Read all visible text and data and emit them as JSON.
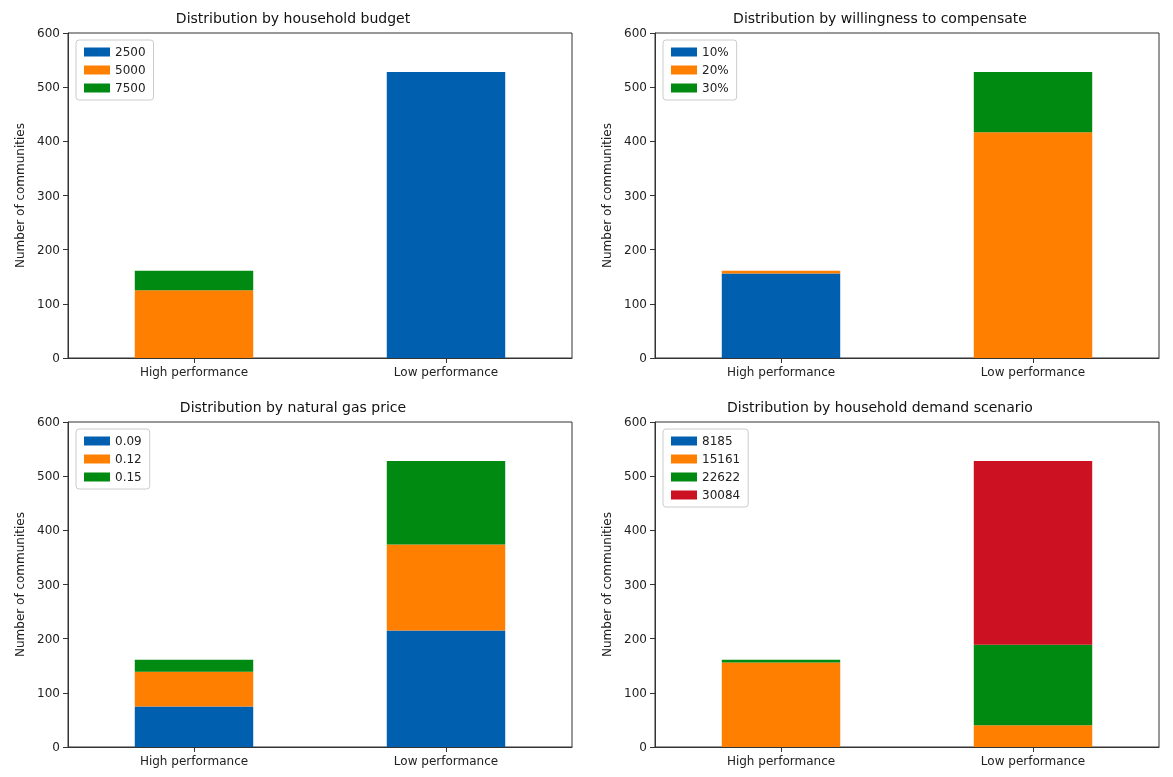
{
  "chart_data": [
    {
      "type": "bar",
      "title": "Distribution by household budget",
      "ylabel": "Number of communities",
      "categories": [
        "High performance",
        "Low performance"
      ],
      "stacked": true,
      "ylim": [
        0,
        600
      ],
      "yticks": [
        0,
        100,
        200,
        300,
        400,
        500,
        600
      ],
      "grid": false,
      "legend": "top left",
      "series": [
        {
          "name": "2500",
          "color": "#005faf",
          "values": [
            0,
            528
          ]
        },
        {
          "name": "5000",
          "color": "#ff7f00",
          "values": [
            125,
            0
          ]
        },
        {
          "name": "7500",
          "color": "#008a11",
          "values": [
            36,
            0
          ]
        }
      ]
    },
    {
      "type": "bar",
      "title": "Distribution by willingness to compensate",
      "ylabel": "Number of communities",
      "categories": [
        "High performance",
        "Low performance"
      ],
      "stacked": true,
      "ylim": [
        0,
        600
      ],
      "yticks": [
        0,
        100,
        200,
        300,
        400,
        500,
        600
      ],
      "grid": false,
      "legend": "top left",
      "series": [
        {
          "name": "10%",
          "color": "#005faf",
          "values": [
            156,
            0
          ]
        },
        {
          "name": "20%",
          "color": "#ff7f00",
          "values": [
            5,
            417
          ]
        },
        {
          "name": "30%",
          "color": "#008a11",
          "values": [
            0,
            111
          ]
        }
      ]
    },
    {
      "type": "bar",
      "title": "Distribution by natural gas price",
      "ylabel": "Number of communities",
      "categories": [
        "High performance",
        "Low performance"
      ],
      "stacked": true,
      "ylim": [
        0,
        600
      ],
      "yticks": [
        0,
        100,
        200,
        300,
        400,
        500,
        600
      ],
      "grid": false,
      "legend": "top left",
      "series": [
        {
          "name": "0.09",
          "color": "#005faf",
          "values": [
            75,
            215
          ]
        },
        {
          "name": "0.12",
          "color": "#ff7f00",
          "values": [
            64,
            159
          ]
        },
        {
          "name": "0.15",
          "color": "#008a11",
          "values": [
            22,
            154
          ]
        }
      ]
    },
    {
      "type": "bar",
      "title": "Distribution by household demand scenario",
      "ylabel": "Number of communities",
      "categories": [
        "High performance",
        "Low performance"
      ],
      "stacked": true,
      "ylim": [
        0,
        600
      ],
      "yticks": [
        0,
        100,
        200,
        300,
        400,
        500,
        600
      ],
      "grid": false,
      "legend": "top left",
      "series": [
        {
          "name": "8185",
          "color": "#005faf",
          "values": [
            0,
            0
          ]
        },
        {
          "name": "15161",
          "color": "#ff7f00",
          "values": [
            156,
            40
          ]
        },
        {
          "name": "22622",
          "color": "#008a11",
          "values": [
            5,
            149
          ]
        },
        {
          "name": "30084",
          "color": "#cc1122",
          "values": [
            0,
            339
          ]
        }
      ]
    }
  ]
}
